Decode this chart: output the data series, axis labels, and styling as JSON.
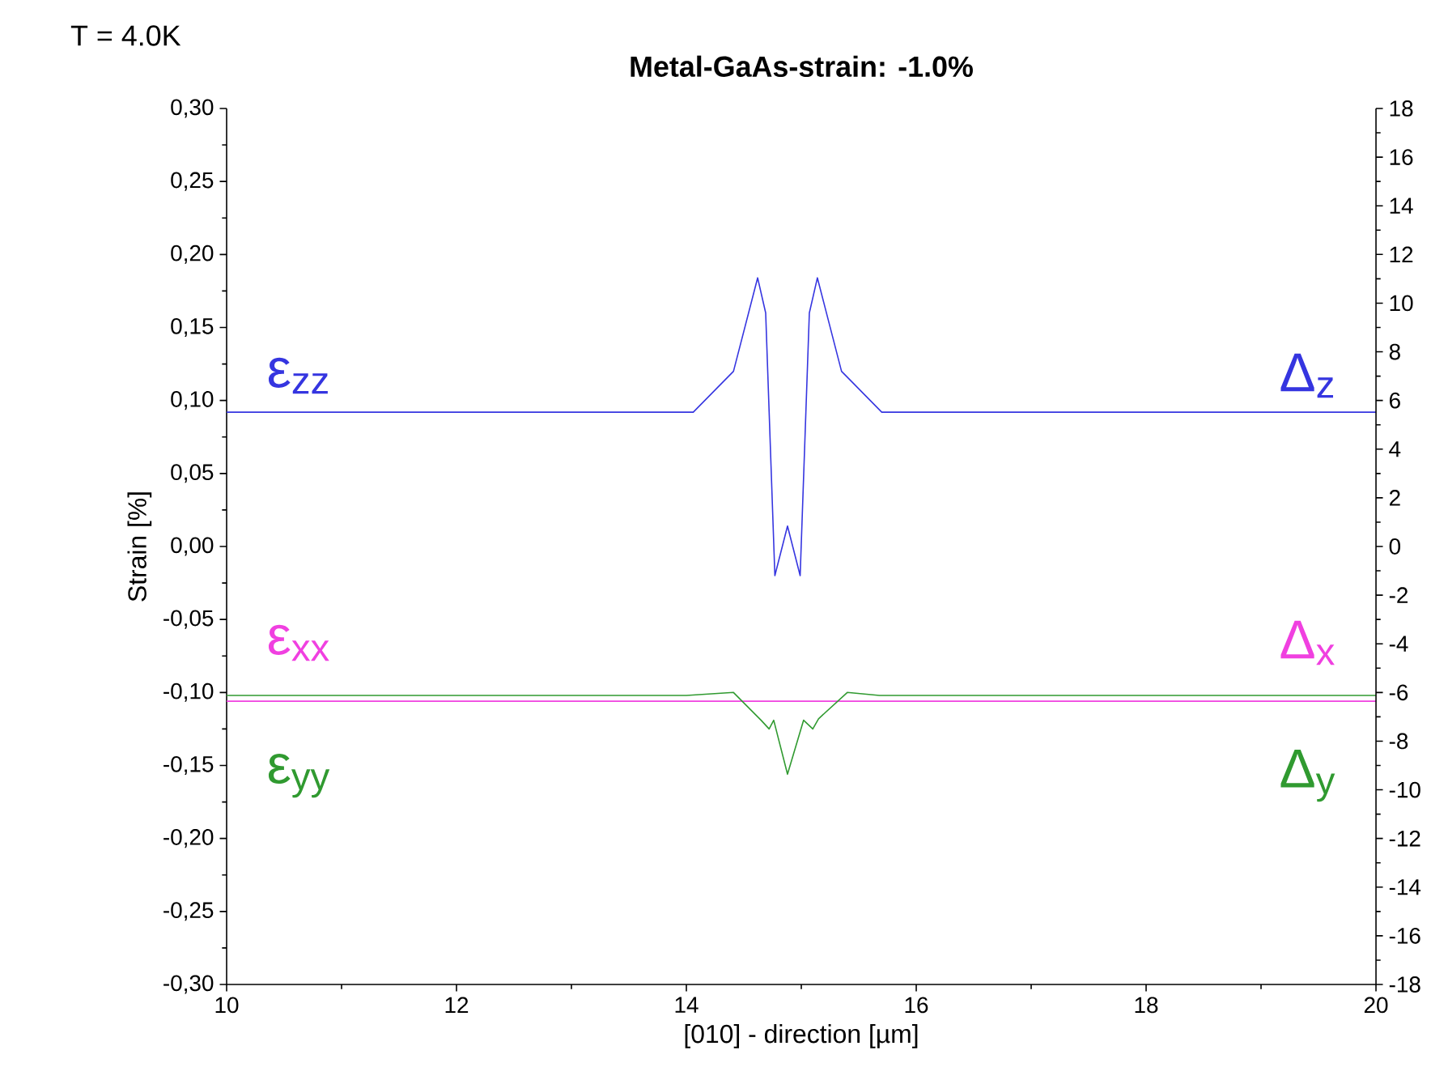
{
  "chart_data": {
    "type": "line",
    "title": "Metal-GaAs-strain: -1.0%",
    "xlabel": "[010] - direction [µm]",
    "ylabel": "Strain [%]",
    "xlim": [
      10,
      20
    ],
    "xticks": [
      10,
      12,
      14,
      16,
      18,
      20
    ],
    "ylim": [
      -0.3,
      0.3
    ],
    "yticks": [
      {
        "value": -0.3,
        "label": "-0,30"
      },
      {
        "value": -0.25,
        "label": "-0,25"
      },
      {
        "value": -0.2,
        "label": "-0,20"
      },
      {
        "value": -0.15,
        "label": "-0,15"
      },
      {
        "value": -0.1,
        "label": "-0,10"
      },
      {
        "value": -0.05,
        "label": "-0,05"
      },
      {
        "value": 0,
        "label": "0,00"
      },
      {
        "value": 0.05,
        "label": "0,05"
      },
      {
        "value": 0.1,
        "label": "0,10"
      },
      {
        "value": 0.15,
        "label": "0,15"
      },
      {
        "value": 0.2,
        "label": "0,20"
      },
      {
        "value": 0.25,
        "label": "0,25"
      },
      {
        "value": 0.3,
        "label": "0,30"
      }
    ],
    "y2lim": [
      -18,
      18
    ],
    "y2ticks": [
      -18,
      -16,
      -14,
      -12,
      -10,
      -8,
      -6,
      -4,
      -2,
      0,
      2,
      4,
      6,
      8,
      10,
      12,
      14,
      16,
      18
    ],
    "grid": false,
    "marker": "none",
    "line_style": "solid",
    "annotations": [
      "T = 4.0K",
      "Δ$_{z}$",
      "Δ$_{x}$",
      "Δ$_{y}$"
    ],
    "series": [
      {
        "name": "ε$_{zz}$",
        "color": "#3535e0",
        "x": [
          10,
          14.06,
          14.41,
          14.62,
          14.69,
          14.77,
          14.88,
          14.99,
          15.07,
          15.14,
          15.35,
          15.7,
          20
        ],
        "values": [
          0.092,
          0.092,
          0.12,
          0.184,
          0.16,
          -0.02,
          0.014,
          -0.02,
          0.16,
          0.184,
          0.12,
          0.092,
          0.092
        ]
      },
      {
        "name": "ε$_{xx}$",
        "color": "#f040e0",
        "x": [
          10,
          20
        ],
        "values": [
          -0.106,
          -0.106
        ]
      },
      {
        "name": "ε$_{yy}$",
        "color": "#309a30",
        "x": [
          10,
          14.0,
          14.41,
          14.65,
          14.72,
          14.76,
          14.88,
          15.02,
          15.1,
          15.15,
          15.4,
          15.68,
          20
        ],
        "values": [
          -0.102,
          -0.102,
          -0.1,
          -0.119,
          -0.125,
          -0.119,
          -0.156,
          -0.119,
          -0.125,
          -0.118,
          -0.1,
          -0.102,
          -0.102
        ]
      }
    ]
  }
}
